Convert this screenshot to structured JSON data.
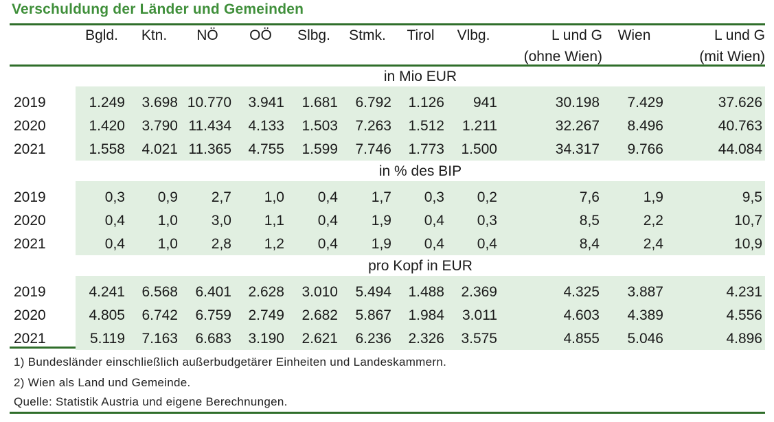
{
  "title": "Verschuldung der Länder und Gemeinden",
  "columns": [
    {
      "line1": "Bgld.",
      "line2": ""
    },
    {
      "line1": "Ktn.",
      "line2": ""
    },
    {
      "line1": "NÖ",
      "line2": ""
    },
    {
      "line1": "OÖ",
      "line2": ""
    },
    {
      "line1": "Slbg.",
      "line2": ""
    },
    {
      "line1": "Stmk.",
      "line2": ""
    },
    {
      "line1": "Tirol",
      "line2": ""
    },
    {
      "line1": "Vlbg.",
      "line2": ""
    },
    {
      "line1": "L und G",
      "line2": "(ohne Wien)"
    },
    {
      "line1": "Wien",
      "line2": ""
    },
    {
      "line1": "L und G",
      "line2": "(mit Wien)"
    }
  ],
  "sections": [
    {
      "label": "in Mio EUR",
      "rows": [
        {
          "year": "2019",
          "values": [
            "1.249",
            "3.698",
            "10.770",
            "3.941",
            "1.681",
            "6.792",
            "1.126",
            "941",
            "30.198",
            "7.429",
            "37.626"
          ]
        },
        {
          "year": "2020",
          "values": [
            "1.420",
            "3.790",
            "11.434",
            "4.133",
            "1.503",
            "7.263",
            "1.512",
            "1.211",
            "32.267",
            "8.496",
            "40.763"
          ]
        },
        {
          "year": "2021",
          "values": [
            "1.558",
            "4.021",
            "11.365",
            "4.755",
            "1.599",
            "7.746",
            "1.773",
            "1.500",
            "34.317",
            "9.766",
            "44.084"
          ]
        }
      ]
    },
    {
      "label": "in % des BIP",
      "rows": [
        {
          "year": "2019",
          "values": [
            "0,3",
            "0,9",
            "2,7",
            "1,0",
            "0,4",
            "1,7",
            "0,3",
            "0,2",
            "7,6",
            "1,9",
            "9,5"
          ]
        },
        {
          "year": "2020",
          "values": [
            "0,4",
            "1,0",
            "3,0",
            "1,1",
            "0,4",
            "1,9",
            "0,4",
            "0,3",
            "8,5",
            "2,2",
            "10,7"
          ]
        },
        {
          "year": "2021",
          "values": [
            "0,4",
            "1,0",
            "2,8",
            "1,2",
            "0,4",
            "1,9",
            "0,4",
            "0,4",
            "8,4",
            "2,4",
            "10,9"
          ]
        }
      ]
    },
    {
      "label": "pro Kopf in EUR",
      "rows": [
        {
          "year": "2019",
          "values": [
            "4.241",
            "6.568",
            "6.401",
            "2.628",
            "3.010",
            "5.494",
            "1.488",
            "2.369",
            "4.325",
            "3.887",
            "4.231"
          ]
        },
        {
          "year": "2020",
          "values": [
            "4.805",
            "6.742",
            "6.759",
            "2.749",
            "2.682",
            "5.867",
            "1.984",
            "3.011",
            "4.603",
            "4.389",
            "4.556"
          ]
        },
        {
          "year": "2021",
          "values": [
            "5.119",
            "7.163",
            "6.683",
            "3.190",
            "2.621",
            "6.236",
            "2.326",
            "3.575",
            "4.855",
            "5.046",
            "4.896"
          ]
        }
      ]
    }
  ],
  "footnotes": [
    "1) Bundesländer einschließlich außerbudgetärer Einheiten und Landeskammern.",
    "2) Wien als Land und Gemeinde.",
    "Quelle: Statistik Austria und eigene Berechnungen."
  ],
  "colors": {
    "title": "#3f8f3a",
    "rule": "#2f6e2a",
    "shading": "#e1efe1"
  }
}
